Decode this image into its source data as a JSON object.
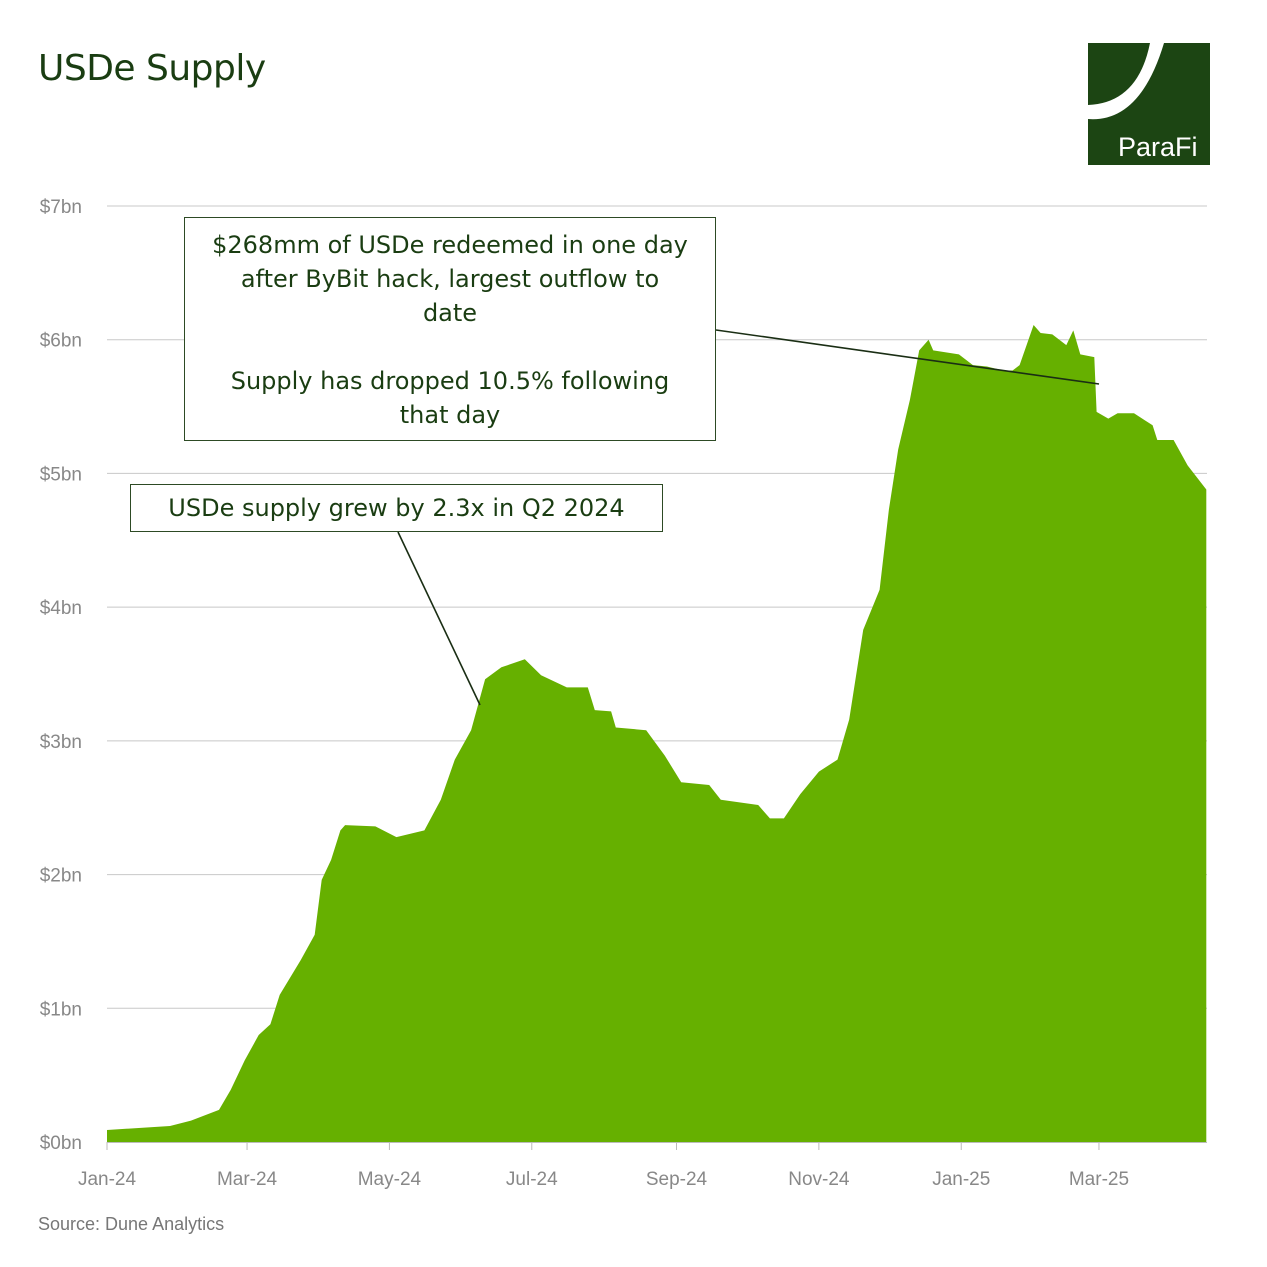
{
  "title": "USDe Supply",
  "logo": {
    "text": "ParaFi",
    "color": "#1c4513"
  },
  "source": "Source: Dune Analytics",
  "annotations": {
    "redemption": {
      "line1": "$268mm of USDe redeemed in one day",
      "line2": "after ByBit hack, largest outflow to",
      "line3": "date",
      "line4": "Supply has dropped 10.5% following",
      "line5": "that day"
    },
    "growth": {
      "text": "USDe supply grew by 2.3x in Q2 2024"
    }
  },
  "chart_data": {
    "type": "area",
    "title": "USDe Supply",
    "xlabel": "",
    "ylabel": "",
    "color": "#66b000",
    "ylim": [
      0,
      7
    ],
    "grid": true,
    "y_ticks": [
      {
        "value": 0,
        "label": "$0bn"
      },
      {
        "value": 1,
        "label": "$1bn"
      },
      {
        "value": 2,
        "label": "$2bn"
      },
      {
        "value": 3,
        "label": "$3bn"
      },
      {
        "value": 4,
        "label": "$4bn"
      },
      {
        "value": 5,
        "label": "$5bn"
      },
      {
        "value": 6,
        "label": "$6bn"
      },
      {
        "value": 7,
        "label": "$7bn"
      }
    ],
    "x_ticks": [
      {
        "date": "2024-01-01",
        "label": "Jan-24"
      },
      {
        "date": "2024-03-01",
        "label": "Mar-24"
      },
      {
        "date": "2024-05-01",
        "label": "May-24"
      },
      {
        "date": "2024-07-01",
        "label": "Jul-24"
      },
      {
        "date": "2024-09-01",
        "label": "Sep-24"
      },
      {
        "date": "2024-11-01",
        "label": "Nov-24"
      },
      {
        "date": "2025-01-01",
        "label": "Jan-25"
      },
      {
        "date": "2025-03-01",
        "label": "Mar-25"
      }
    ],
    "series": [
      {
        "unit": "USD bn",
        "points": [
          [
            "2024-01-01",
            0.09
          ],
          [
            "2024-01-28",
            0.12
          ],
          [
            "2024-02-06",
            0.16
          ],
          [
            "2024-02-18",
            0.24
          ],
          [
            "2024-02-23",
            0.39
          ],
          [
            "2024-02-29",
            0.61
          ],
          [
            "2024-03-06",
            0.8
          ],
          [
            "2024-03-11",
            0.88
          ],
          [
            "2024-03-15",
            1.1
          ],
          [
            "2024-03-24",
            1.36
          ],
          [
            "2024-03-30",
            1.55
          ],
          [
            "2024-04-02",
            1.96
          ],
          [
            "2024-04-06",
            2.11
          ],
          [
            "2024-04-10",
            2.33
          ],
          [
            "2024-04-12",
            2.37
          ],
          [
            "2024-04-25",
            2.36
          ],
          [
            "2024-05-04",
            2.28
          ],
          [
            "2024-05-16",
            2.33
          ],
          [
            "2024-05-23",
            2.56
          ],
          [
            "2024-05-29",
            2.86
          ],
          [
            "2024-06-05",
            3.08
          ],
          [
            "2024-06-11",
            3.46
          ],
          [
            "2024-06-18",
            3.55
          ],
          [
            "2024-06-28",
            3.61
          ],
          [
            "2024-07-05",
            3.49
          ],
          [
            "2024-07-16",
            3.4
          ],
          [
            "2024-07-25",
            3.4
          ],
          [
            "2024-07-28",
            3.23
          ],
          [
            "2024-08-04",
            3.22
          ],
          [
            "2024-08-06",
            3.1
          ],
          [
            "2024-08-19",
            3.08
          ],
          [
            "2024-08-27",
            2.89
          ],
          [
            "2024-09-03",
            2.69
          ],
          [
            "2024-09-15",
            2.67
          ],
          [
            "2024-09-20",
            2.56
          ],
          [
            "2024-10-06",
            2.52
          ],
          [
            "2024-10-11",
            2.42
          ],
          [
            "2024-10-17",
            2.42
          ],
          [
            "2024-10-24",
            2.6
          ],
          [
            "2024-11-01",
            2.77
          ],
          [
            "2024-11-09",
            2.86
          ],
          [
            "2024-11-14",
            3.16
          ],
          [
            "2024-11-20",
            3.83
          ],
          [
            "2024-11-27",
            4.13
          ],
          [
            "2024-12-01",
            4.73
          ],
          [
            "2024-12-05",
            5.18
          ],
          [
            "2024-12-10",
            5.55
          ],
          [
            "2024-12-14",
            5.92
          ],
          [
            "2024-12-18",
            6.0
          ],
          [
            "2024-12-20",
            5.92
          ],
          [
            "2024-12-31",
            5.89
          ],
          [
            "2025-01-06",
            5.81
          ],
          [
            "2025-01-12",
            5.8
          ],
          [
            "2025-01-19",
            5.77
          ],
          [
            "2025-01-23",
            5.77
          ],
          [
            "2025-01-26",
            5.81
          ],
          [
            "2025-02-01",
            6.11
          ],
          [
            "2025-02-04",
            6.05
          ],
          [
            "2025-02-09",
            6.04
          ],
          [
            "2025-02-15",
            5.96
          ],
          [
            "2025-02-18",
            6.07
          ],
          [
            "2025-02-21",
            5.89
          ],
          [
            "2025-02-27",
            5.87
          ],
          [
            "2025-02-28",
            5.46
          ],
          [
            "2025-03-05",
            5.41
          ],
          [
            "2025-03-09",
            5.45
          ],
          [
            "2025-03-16",
            5.45
          ],
          [
            "2025-03-24",
            5.36
          ],
          [
            "2025-03-26",
            5.25
          ],
          [
            "2025-04-02",
            5.25
          ],
          [
            "2025-04-08",
            5.06
          ],
          [
            "2025-04-16",
            4.88
          ]
        ]
      }
    ]
  }
}
